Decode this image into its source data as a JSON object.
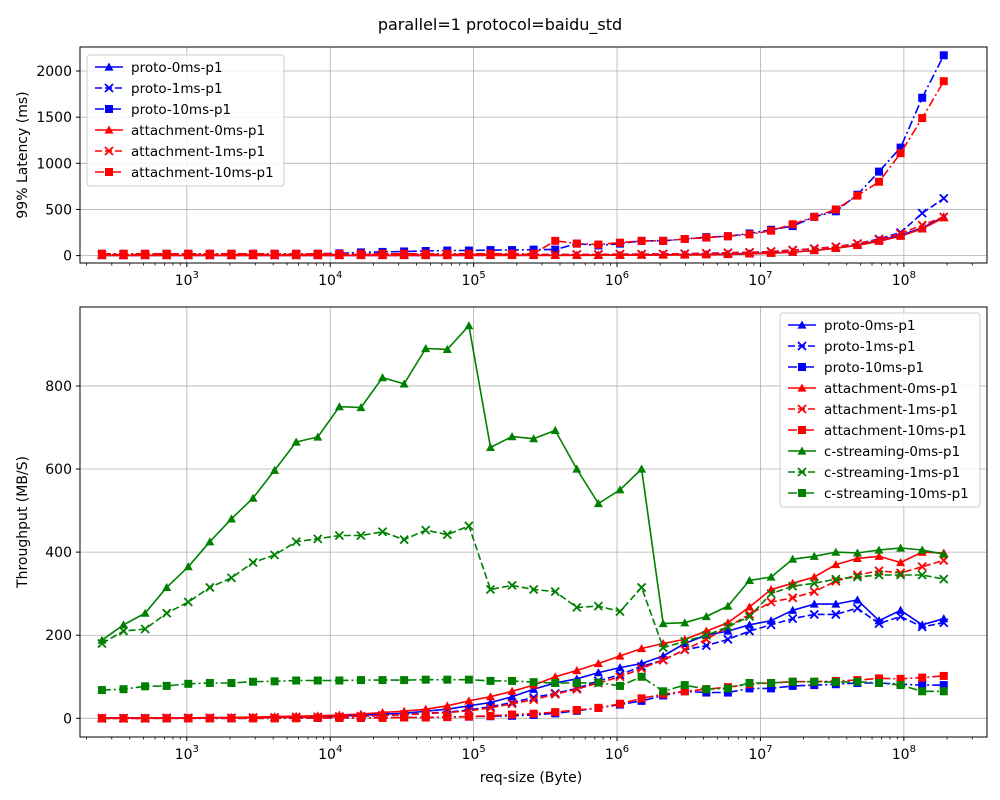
{
  "figure": {
    "title": "parallel=1 protocol=baidu_std",
    "xlabel": "req-size (Byte)"
  },
  "colors": {
    "proto": "#0000ff",
    "attachment": "#ff0000",
    "c-streaming": "#008000",
    "grid": "#b0b0b0"
  },
  "chart_data": [
    {
      "type": "line",
      "xscale": "log",
      "xlim": [
        180,
        380000000
      ],
      "ylim": [
        -80,
        2260
      ],
      "yticks": [
        0,
        500,
        1000,
        1500,
        2000
      ],
      "xticks": [
        {
          "value": 1000,
          "base": "10",
          "exp": "3"
        },
        {
          "value": 10000,
          "base": "10",
          "exp": "4"
        },
        {
          "value": 100000,
          "base": "10",
          "exp": "5"
        },
        {
          "value": 1000000,
          "base": "10",
          "exp": "6"
        },
        {
          "value": 10000000,
          "base": "10",
          "exp": "7"
        },
        {
          "value": 100000000,
          "base": "10",
          "exp": "8"
        }
      ],
      "ylabel": "99% Latency (ms)",
      "legend_position": "upper-left",
      "x": [
        256,
        362,
        512,
        724,
        1024,
        1448,
        2048,
        2896,
        4096,
        5792,
        8192,
        11585,
        16384,
        23170,
        32768,
        46340,
        65536,
        92681,
        131072,
        185363,
        262144,
        370727,
        524288,
        741455,
        1048576,
        1482910,
        2097152,
        2965821,
        4194304,
        5931642,
        8388608,
        11863283,
        16777216,
        23726566,
        33554432,
        47453132,
        67108864,
        94906265,
        134217728,
        189812531
      ],
      "series": [
        {
          "name": "proto-0ms-p1",
          "color": "#0000ff",
          "dash": "solid",
          "marker": "triangle",
          "values": [
            1,
            1,
            1,
            1,
            1,
            1,
            1,
            1,
            1,
            1,
            1,
            2,
            2,
            2,
            2,
            2,
            3,
            3,
            4,
            4,
            5,
            5,
            6,
            6,
            7,
            8,
            10,
            12,
            14,
            17,
            22,
            28,
            38,
            55,
            80,
            115,
            165,
            220,
            300,
            420
          ]
        },
        {
          "name": "proto-1ms-p1",
          "color": "#0000ff",
          "dash": "dashed",
          "marker": "x",
          "values": [
            10,
            10,
            10,
            10,
            10,
            10,
            10,
            10,
            10,
            10,
            10,
            10,
            12,
            12,
            12,
            12,
            12,
            12,
            12,
            12,
            12,
            12,
            12,
            12,
            15,
            15,
            18,
            20,
            25,
            30,
            35,
            45,
            60,
            75,
            95,
            130,
            180,
            250,
            460,
            620
          ]
        },
        {
          "name": "proto-10ms-p1",
          "color": "#0000ff",
          "dash": "dashdot",
          "marker": "square",
          "values": [
            20,
            20,
            20,
            20,
            20,
            20,
            20,
            20,
            20,
            20,
            20,
            25,
            35,
            40,
            45,
            50,
            55,
            55,
            60,
            60,
            65,
            65,
            130,
            110,
            130,
            160,
            160,
            180,
            200,
            210,
            240,
            280,
            320,
            420,
            480,
            660,
            910,
            1170,
            1710,
            2170
          ]
        },
        {
          "name": "attachment-0ms-p1",
          "color": "#ff0000",
          "dash": "solid",
          "marker": "triangle",
          "values": [
            1,
            1,
            1,
            1,
            1,
            1,
            1,
            1,
            1,
            1,
            1,
            1,
            1,
            1,
            1,
            1,
            1,
            2,
            2,
            2,
            2,
            2,
            3,
            3,
            4,
            5,
            6,
            7,
            9,
            12,
            18,
            25,
            38,
            55,
            80,
            110,
            155,
            210,
            290,
            410
          ]
        },
        {
          "name": "attachment-1ms-p1",
          "color": "#ff0000",
          "dash": "dashed",
          "marker": "x",
          "values": [
            10,
            10,
            10,
            10,
            10,
            10,
            10,
            10,
            10,
            10,
            10,
            10,
            12,
            12,
            12,
            12,
            12,
            12,
            12,
            12,
            12,
            12,
            12,
            12,
            15,
            15,
            18,
            20,
            25,
            30,
            35,
            45,
            60,
            75,
            95,
            130,
            175,
            240,
            330,
            420
          ]
        },
        {
          "name": "attachment-10ms-p1",
          "color": "#ff0000",
          "dash": "dashdot",
          "marker": "square",
          "values": [
            20,
            20,
            20,
            20,
            20,
            20,
            20,
            20,
            20,
            20,
            20,
            20,
            20,
            20,
            20,
            20,
            20,
            20,
            20,
            20,
            20,
            160,
            130,
            120,
            140,
            160,
            160,
            180,
            195,
            210,
            230,
            270,
            340,
            420,
            500,
            650,
            800,
            1110,
            1490,
            1890
          ]
        }
      ]
    },
    {
      "type": "line",
      "xscale": "log",
      "xlim": [
        180,
        380000000
      ],
      "ylim": [
        -45,
        990
      ],
      "yticks": [
        0,
        200,
        400,
        600,
        800
      ],
      "xticks": [
        {
          "value": 1000,
          "base": "10",
          "exp": "3"
        },
        {
          "value": 10000,
          "base": "10",
          "exp": "4"
        },
        {
          "value": 100000,
          "base": "10",
          "exp": "5"
        },
        {
          "value": 1000000,
          "base": "10",
          "exp": "6"
        },
        {
          "value": 10000000,
          "base": "10",
          "exp": "7"
        },
        {
          "value": 100000000,
          "base": "10",
          "exp": "8"
        }
      ],
      "ylabel": "Throughput (MB/S)",
      "legend_position": "upper-right",
      "x": [
        256,
        362,
        512,
        724,
        1024,
        1448,
        2048,
        2896,
        4096,
        5792,
        8192,
        11585,
        16384,
        23170,
        32768,
        46340,
        65536,
        92681,
        131072,
        185363,
        262144,
        370727,
        524288,
        741455,
        1048576,
        1482910,
        2097152,
        2965821,
        4194304,
        5931642,
        8388608,
        11863283,
        16777216,
        23726566,
        33554432,
        47453132,
        67108864,
        94906265,
        134217728,
        189812531
      ],
      "series": [
        {
          "name": "proto-0ms-p1",
          "color": "#0000ff",
          "dash": "solid",
          "marker": "triangle",
          "values": [
            1,
            1,
            1,
            1,
            1,
            1,
            2,
            2,
            3,
            3,
            4,
            6,
            7,
            10,
            12,
            17,
            22,
            30,
            38,
            52,
            70,
            85,
            95,
            110,
            122,
            132,
            150,
            180,
            200,
            210,
            225,
            235,
            260,
            275,
            275,
            285,
            235,
            260,
            225,
            240
          ]
        },
        {
          "name": "proto-1ms-p1",
          "color": "#0000ff",
          "dash": "dashed",
          "marker": "x",
          "values": [
            0,
            0,
            0,
            1,
            1,
            1,
            1,
            2,
            2,
            3,
            3,
            4,
            5,
            7,
            9,
            12,
            15,
            20,
            28,
            38,
            50,
            60,
            72,
            90,
            105,
            125,
            140,
            165,
            175,
            190,
            210,
            225,
            240,
            250,
            250,
            265,
            228,
            245,
            220,
            230
          ]
        },
        {
          "name": "proto-10ms-p1",
          "color": "#0000ff",
          "dash": "dashdot",
          "marker": "square",
          "values": [
            0,
            0,
            0,
            0,
            0,
            0,
            0,
            0,
            0,
            1,
            1,
            1,
            1,
            2,
            2,
            2,
            3,
            4,
            5,
            6,
            8,
            12,
            18,
            25,
            33,
            42,
            55,
            65,
            62,
            62,
            72,
            72,
            78,
            80,
            82,
            85,
            85,
            82,
            80,
            80
          ]
        },
        {
          "name": "attachment-0ms-p1",
          "color": "#ff0000",
          "dash": "solid",
          "marker": "triangle",
          "values": [
            1,
            1,
            1,
            1,
            1,
            2,
            2,
            3,
            4,
            5,
            6,
            8,
            10,
            14,
            17,
            22,
            30,
            42,
            52,
            65,
            80,
            100,
            115,
            132,
            150,
            168,
            180,
            190,
            210,
            230,
            268,
            310,
            325,
            340,
            370,
            385,
            390,
            375,
            400,
            398
          ]
        },
        {
          "name": "attachment-1ms-p1",
          "color": "#ff0000",
          "dash": "dashed",
          "marker": "x",
          "values": [
            0,
            0,
            0,
            1,
            1,
            1,
            1,
            2,
            2,
            3,
            3,
            4,
            5,
            7,
            9,
            11,
            14,
            18,
            25,
            35,
            45,
            58,
            70,
            85,
            100,
            120,
            140,
            165,
            190,
            220,
            250,
            280,
            290,
            305,
            330,
            345,
            355,
            350,
            365,
            380
          ]
        },
        {
          "name": "attachment-10ms-p1",
          "color": "#ff0000",
          "dash": "dashdot",
          "marker": "square",
          "values": [
            0,
            0,
            0,
            0,
            0,
            0,
            0,
            0,
            0,
            0,
            1,
            1,
            1,
            1,
            2,
            2,
            3,
            4,
            6,
            9,
            11,
            15,
            20,
            25,
            35,
            48,
            58,
            65,
            70,
            75,
            82,
            85,
            88,
            88,
            90,
            92,
            96,
            95,
            98,
            102
          ]
        },
        {
          "name": "c-streaming-0ms-p1",
          "color": "#008000",
          "dash": "solid",
          "marker": "triangle",
          "values": [
            188,
            225,
            253,
            315,
            365,
            425,
            480,
            530,
            597,
            665,
            677,
            750,
            748,
            820,
            805,
            890,
            888,
            945,
            652,
            678,
            673,
            693,
            600,
            517,
            550,
            600,
            228,
            230,
            245,
            270,
            332,
            340,
            383,
            390,
            400,
            398,
            405,
            410,
            405,
            395
          ]
        },
        {
          "name": "c-streaming-1ms-p1",
          "color": "#008000",
          "dash": "dashed",
          "marker": "x",
          "values": [
            180,
            210,
            215,
            253,
            280,
            315,
            338,
            375,
            393,
            425,
            432,
            440,
            440,
            449,
            430,
            453,
            442,
            463,
            310,
            320,
            310,
            305,
            267,
            270,
            257,
            315,
            170,
            185,
            200,
            220,
            245,
            300,
            318,
            325,
            335,
            340,
            345,
            345,
            345,
            335
          ]
        },
        {
          "name": "c-streaming-10ms-p1",
          "color": "#008000",
          "dash": "dashdot",
          "marker": "square",
          "values": [
            68,
            70,
            77,
            78,
            83,
            85,
            85,
            88,
            89,
            91,
            91,
            91,
            92,
            92,
            92,
            93,
            93,
            93,
            90,
            90,
            87,
            85,
            85,
            86,
            78,
            100,
            65,
            80,
            70,
            72,
            85,
            85,
            88,
            88,
            87,
            88,
            85,
            80,
            65,
            65
          ]
        }
      ]
    }
  ]
}
